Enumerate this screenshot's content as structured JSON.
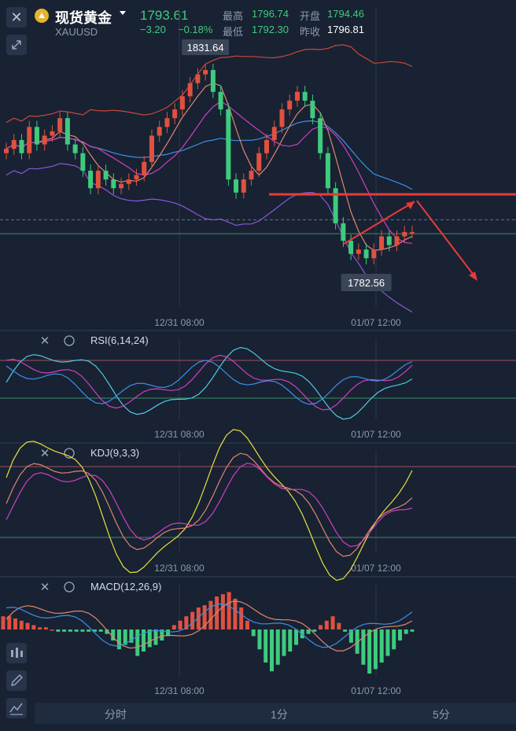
{
  "header": {
    "symbol_name": "现货黄金",
    "symbol_code": "XAUUSD",
    "last_price": "1793.61",
    "change": "−3.20",
    "change_pct": "−0.18%",
    "high_label": "最高",
    "high": "1796.74",
    "open_label": "开盘",
    "open": "1794.46",
    "low_label": "最低",
    "low": "1792.30",
    "prev_close_label": "昨收",
    "prev_close": "1796.81"
  },
  "tabs": [
    "分时",
    "1分",
    "5分"
  ],
  "colors": {
    "bg": "#182233",
    "up": "#e0513f",
    "down": "#3ecb7d",
    "bb_upper": "#c8493a",
    "bb_mid": "#3d8fe8",
    "bb_lower": "#8b57d8",
    "ma_pink": "#d13fbf",
    "ma_orange": "#e0866e",
    "annot": "#e83a3a",
    "grid": "#2a3649"
  },
  "chart_data": [
    {
      "type": "candlestick",
      "title": "",
      "x_ticks": [
        "12/31 08:00",
        "01/07 12:00"
      ],
      "callouts": {
        "high": "1831.64",
        "low": "1782.56"
      },
      "approx_close": [
        1813,
        1815,
        1812,
        1818,
        1814,
        1816,
        1817,
        1820,
        1814,
        1812,
        1808,
        1804,
        1808,
        1806,
        1804,
        1805,
        1806,
        1807,
        1810,
        1816,
        1818,
        1820,
        1822,
        1825,
        1828,
        1830,
        1831,
        1826,
        1822,
        1806,
        1803,
        1806,
        1808,
        1812,
        1815,
        1818,
        1822,
        1824,
        1826,
        1824,
        1820,
        1812,
        1804,
        1796,
        1792,
        1789,
        1790,
        1788,
        1790,
        1793,
        1791,
        1793,
        1794,
        1794
      ],
      "overlays": [
        "Bollinger Bands",
        "MA"
      ],
      "annotations": [
        "resistance line",
        "downward arrow"
      ]
    },
    {
      "type": "line",
      "title": "RSI(6,14,24)",
      "x_ticks": [
        "12/31 08:00",
        "01/07 12:00"
      ],
      "series": [
        {
          "name": "RSI6"
        },
        {
          "name": "RSI14"
        },
        {
          "name": "RSI24"
        }
      ]
    },
    {
      "type": "line",
      "title": "KDJ(9,3,3)",
      "x_ticks": [
        "12/31 08:00",
        "01/07 12:00"
      ],
      "series": [
        {
          "name": "K"
        },
        {
          "name": "D"
        },
        {
          "name": "J"
        }
      ]
    },
    {
      "type": "bar",
      "title": "MACD(12,26,9)",
      "x_ticks": [
        "12/31 08:00",
        "01/07 12:00"
      ],
      "histogram": [
        0.6,
        0.6,
        0.5,
        0.4,
        0.3,
        0.2,
        0.1,
        0.1,
        0.0,
        -0.1,
        -0.1,
        -0.1,
        -0.1,
        -0.1,
        -0.1,
        -0.1,
        -0.1,
        -0.2,
        -0.5,
        -0.9,
        -0.7,
        -0.6,
        -1.2,
        -1.0,
        -0.8,
        -0.7,
        -0.5,
        -0.3,
        0.2,
        0.4,
        0.6,
        0.8,
        1.0,
        1.1,
        1.3,
        1.5,
        1.6,
        1.7,
        1.4,
        1.0,
        0.4,
        -0.3,
        -0.9,
        -1.5,
        -1.9,
        -1.6,
        -1.2,
        -1.0,
        -0.7,
        -0.4,
        -0.2,
        -0.1,
        0.2,
        0.4,
        0.6,
        0.3,
        -0.1,
        -0.6,
        -1.1,
        -1.6,
        -2.0,
        -1.8,
        -1.5,
        -1.2,
        -0.9,
        -0.5,
        -0.2,
        -0.1
      ]
    }
  ]
}
